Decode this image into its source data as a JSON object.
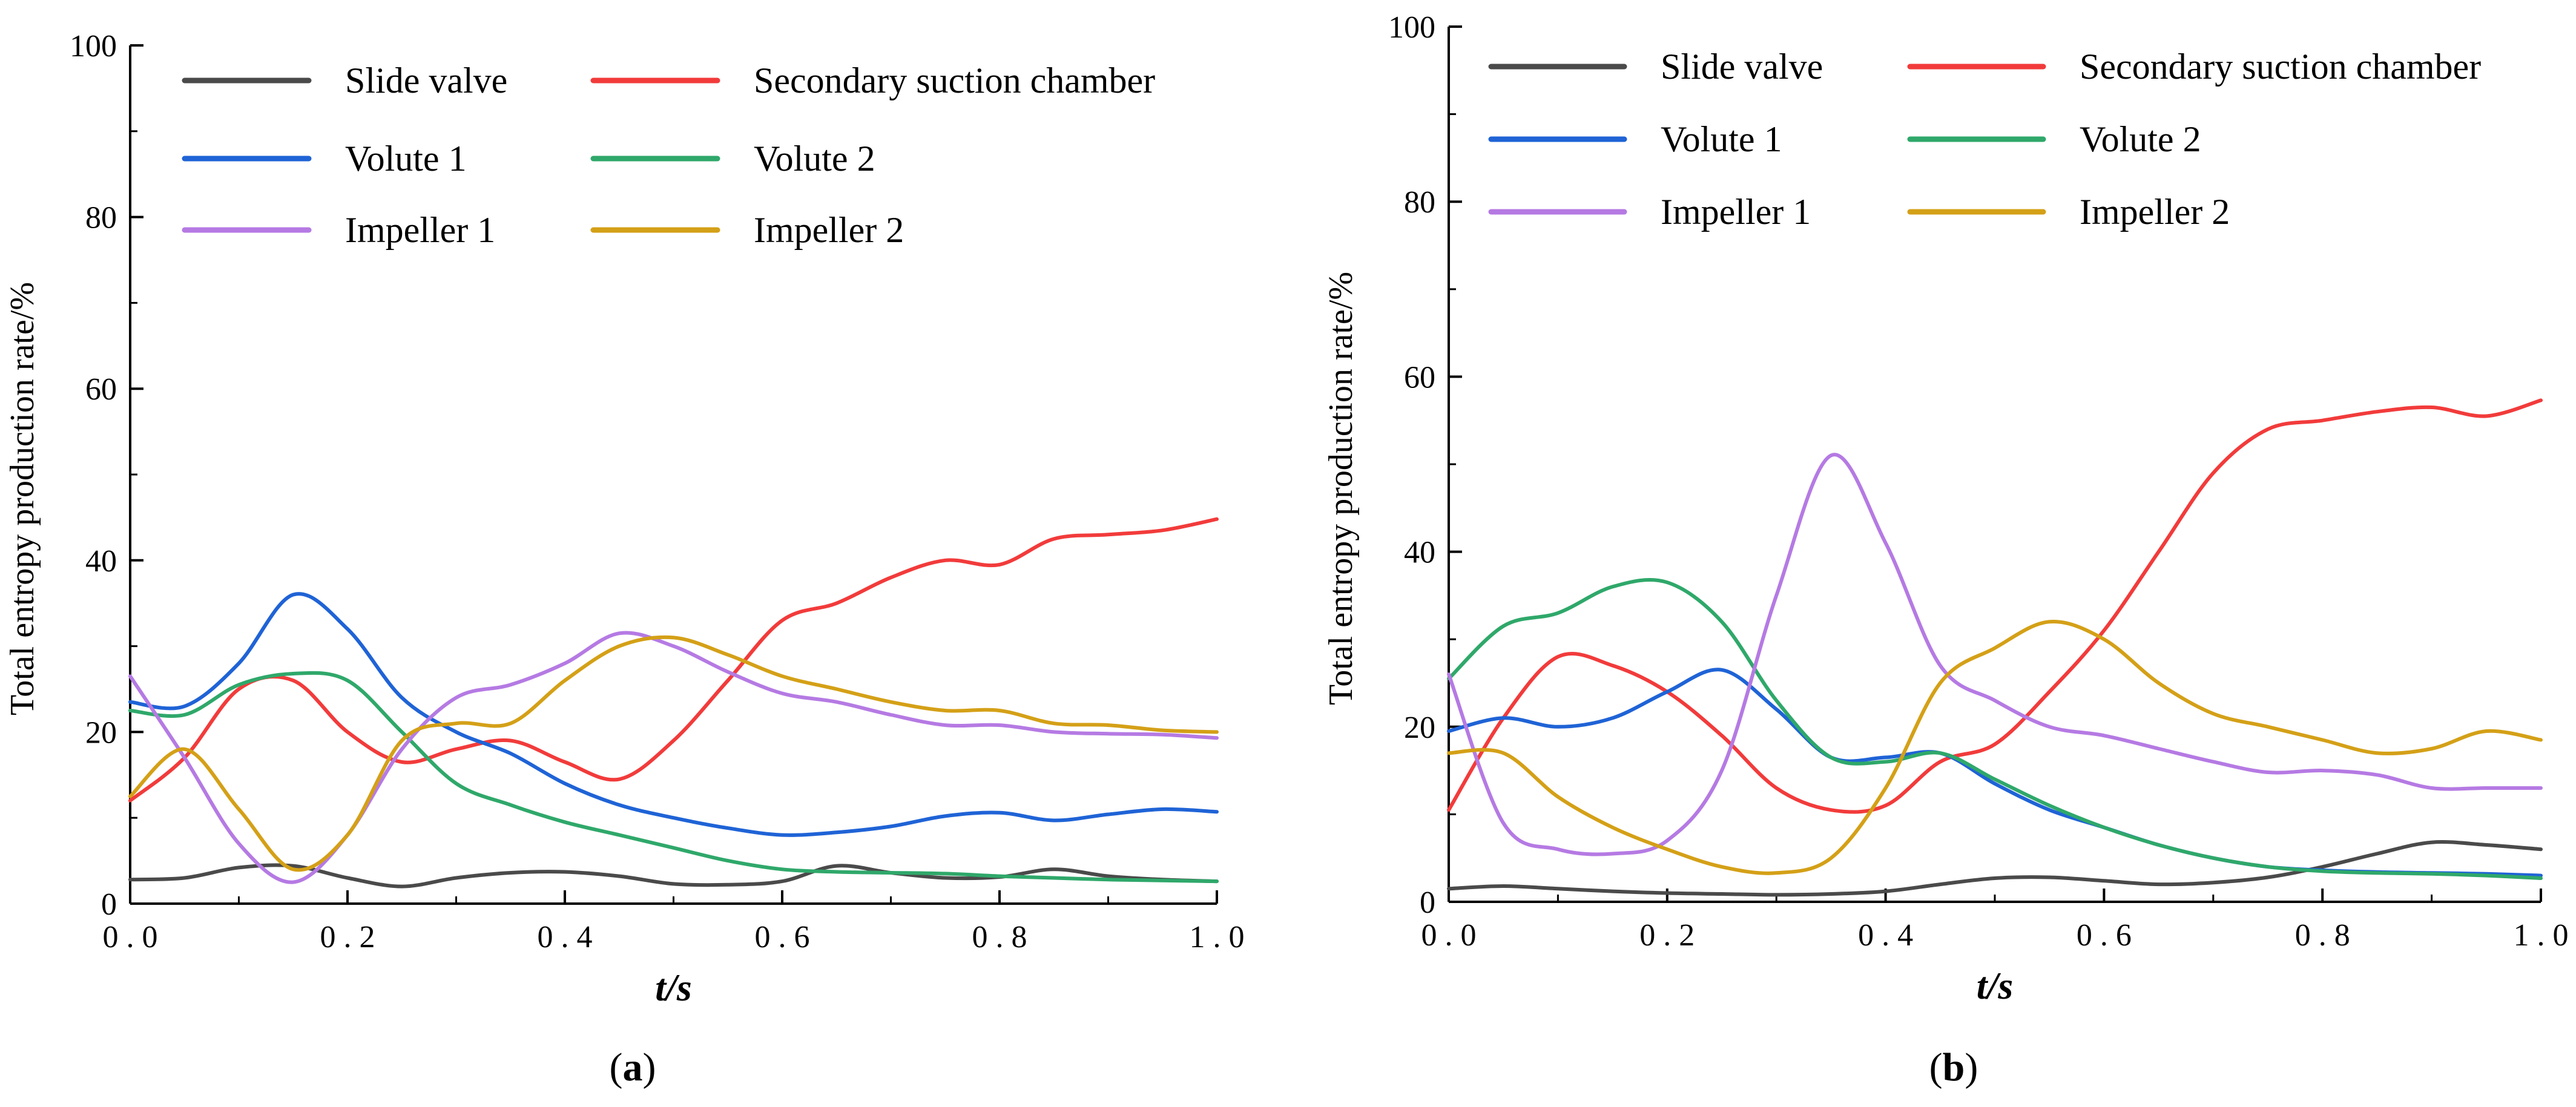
{
  "chart_data": [
    {
      "type": "line",
      "panel_label": "a",
      "xlabel": "t/s",
      "ylabel": "Total entropy production rate/%",
      "xlim": [
        0,
        1
      ],
      "ylim": [
        0,
        100
      ],
      "x_ticks": [
        "0.0",
        "0.2",
        "0.4",
        "0.6",
        "0.8",
        "1.0"
      ],
      "y_ticks": [
        "0",
        "20",
        "40",
        "60",
        "80",
        "100"
      ],
      "legend_position": "top",
      "series": [
        {
          "name": "Slide valve",
          "color": "#4a4a4a",
          "x": [
            0,
            0.05,
            0.1,
            0.15,
            0.2,
            0.25,
            0.3,
            0.35,
            0.4,
            0.45,
            0.5,
            0.55,
            0.6,
            0.65,
            0.7,
            0.75,
            0.8,
            0.85,
            0.9,
            0.95,
            1.0
          ],
          "y": [
            2.8,
            3.0,
            4.2,
            4.4,
            3.0,
            2.0,
            3.0,
            3.6,
            3.7,
            3.2,
            2.3,
            2.2,
            2.6,
            4.4,
            3.6,
            3.0,
            3.1,
            4.0,
            3.2,
            2.8,
            2.6
          ]
        },
        {
          "name": "Secondary suction chamber",
          "color": "#f23b3b",
          "x": [
            0,
            0.05,
            0.1,
            0.15,
            0.2,
            0.25,
            0.3,
            0.35,
            0.4,
            0.45,
            0.5,
            0.55,
            0.6,
            0.65,
            0.7,
            0.75,
            0.8,
            0.85,
            0.9,
            0.95,
            1.0
          ],
          "y": [
            12,
            17,
            25,
            26,
            20,
            16.5,
            18,
            19,
            16.5,
            14.5,
            19,
            26,
            33,
            35,
            38,
            40,
            39.5,
            42.5,
            43,
            43.5,
            44.8
          ]
        },
        {
          "name": "Volute 1",
          "color": "#1f63d6",
          "x": [
            0,
            0.05,
            0.1,
            0.15,
            0.2,
            0.25,
            0.3,
            0.35,
            0.4,
            0.45,
            0.5,
            0.55,
            0.6,
            0.65,
            0.7,
            0.75,
            0.8,
            0.85,
            0.9,
            0.95,
            1.0
          ],
          "y": [
            23.5,
            23,
            28,
            36,
            32,
            24,
            20,
            17.5,
            14,
            11.5,
            10,
            8.8,
            8.0,
            8.3,
            9.0,
            10.2,
            10.6,
            9.7,
            10.4,
            11.0,
            10.7
          ]
        },
        {
          "name": "Volute 2",
          "color": "#2fa86a",
          "x": [
            0,
            0.05,
            0.1,
            0.15,
            0.2,
            0.25,
            0.3,
            0.35,
            0.4,
            0.45,
            0.5,
            0.55,
            0.6,
            0.65,
            0.7,
            0.75,
            0.8,
            0.85,
            0.9,
            0.95,
            1.0
          ],
          "y": [
            22.5,
            22,
            25.5,
            26.8,
            26,
            20,
            14,
            11.5,
            9.5,
            8,
            6.5,
            5,
            4,
            3.7,
            3.6,
            3.5,
            3.2,
            3.0,
            2.8,
            2.7,
            2.6
          ]
        },
        {
          "name": "Impeller 1",
          "color": "#b57ae3",
          "x": [
            0,
            0.05,
            0.1,
            0.15,
            0.2,
            0.25,
            0.3,
            0.35,
            0.4,
            0.45,
            0.5,
            0.55,
            0.6,
            0.65,
            0.7,
            0.75,
            0.8,
            0.85,
            0.9,
            0.95,
            1.0
          ],
          "y": [
            26.5,
            17,
            7,
            2.5,
            8,
            18,
            24,
            25.5,
            28,
            31.5,
            30,
            27,
            24.5,
            23.5,
            22,
            20.8,
            20.8,
            20,
            19.8,
            19.7,
            19.3
          ]
        },
        {
          "name": "Impeller 2",
          "color": "#d4a017",
          "x": [
            0,
            0.05,
            0.1,
            0.15,
            0.2,
            0.25,
            0.3,
            0.35,
            0.4,
            0.45,
            0.5,
            0.55,
            0.6,
            0.65,
            0.7,
            0.75,
            0.8,
            0.85,
            0.9,
            0.95,
            1.0
          ],
          "y": [
            12.5,
            18,
            11,
            4,
            8,
            19,
            21,
            21,
            26,
            30,
            31,
            29,
            26.5,
            25,
            23.5,
            22.5,
            22.5,
            21,
            20.8,
            20.2,
            20
          ]
        }
      ]
    },
    {
      "type": "line",
      "panel_label": "b",
      "xlabel": "t/s",
      "ylabel": "Total entropy production rate/%",
      "xlim": [
        0,
        1
      ],
      "ylim": [
        0,
        100
      ],
      "x_ticks": [
        "0.0",
        "0.2",
        "0.4",
        "0.6",
        "0.8",
        "1.0"
      ],
      "y_ticks": [
        "0",
        "20",
        "40",
        "60",
        "80",
        "100"
      ],
      "legend_position": "top",
      "series": [
        {
          "name": "Slide valve",
          "color": "#4a4a4a",
          "x": [
            0,
            0.05,
            0.1,
            0.15,
            0.2,
            0.25,
            0.3,
            0.35,
            0.4,
            0.45,
            0.5,
            0.55,
            0.6,
            0.65,
            0.7,
            0.75,
            0.8,
            0.85,
            0.9,
            0.95,
            1.0
          ],
          "y": [
            1.5,
            1.8,
            1.5,
            1.2,
            1.0,
            0.9,
            0.8,
            0.9,
            1.2,
            2.0,
            2.7,
            2.8,
            2.4,
            2.0,
            2.2,
            2.8,
            4.0,
            5.5,
            6.8,
            6.5,
            6.0
          ]
        },
        {
          "name": "Secondary suction chamber",
          "color": "#f23b3b",
          "x": [
            0,
            0.05,
            0.1,
            0.15,
            0.2,
            0.25,
            0.3,
            0.35,
            0.4,
            0.45,
            0.5,
            0.55,
            0.6,
            0.65,
            0.7,
            0.75,
            0.8,
            0.85,
            0.9,
            0.95,
            1.0
          ],
          "y": [
            10.5,
            21,
            28,
            27,
            24,
            19,
            13,
            10.5,
            11,
            16,
            18,
            24,
            31,
            40,
            49,
            54,
            55,
            56,
            56.5,
            55.5,
            57.3
          ]
        },
        {
          "name": "Volute 1",
          "color": "#1f63d6",
          "x": [
            0,
            0.05,
            0.1,
            0.15,
            0.2,
            0.25,
            0.3,
            0.35,
            0.4,
            0.45,
            0.5,
            0.55,
            0.6,
            0.65,
            0.7,
            0.75,
            0.8,
            0.85,
            0.9,
            0.95,
            1.0
          ],
          "y": [
            19.5,
            21,
            20,
            21,
            24,
            26.5,
            22,
            16.5,
            16.5,
            17,
            13.5,
            10.5,
            8.5,
            6.5,
            5,
            4,
            3.6,
            3.4,
            3.3,
            3.2,
            3.0
          ]
        },
        {
          "name": "Volute 2",
          "color": "#2fa86a",
          "x": [
            0,
            0.05,
            0.1,
            0.15,
            0.2,
            0.25,
            0.3,
            0.35,
            0.4,
            0.45,
            0.5,
            0.55,
            0.6,
            0.65,
            0.7,
            0.75,
            0.8,
            0.85,
            0.9,
            0.95,
            1.0
          ],
          "y": [
            25.5,
            31.5,
            33,
            36,
            36.5,
            32,
            23,
            16.5,
            16,
            17,
            14,
            11,
            8.5,
            6.5,
            5,
            4,
            3.5,
            3.3,
            3.2,
            3.0,
            2.7
          ]
        },
        {
          "name": "Impeller 1",
          "color": "#b57ae3",
          "x": [
            0,
            0.05,
            0.1,
            0.15,
            0.2,
            0.25,
            0.3,
            0.35,
            0.4,
            0.45,
            0.5,
            0.55,
            0.6,
            0.65,
            0.7,
            0.75,
            0.8,
            0.85,
            0.9,
            0.95,
            1.0
          ],
          "y": [
            26,
            9,
            6,
            5.5,
            7,
            15,
            35,
            51,
            41,
            27,
            23,
            20,
            19,
            17.5,
            16,
            14.8,
            15,
            14.5,
            13,
            13,
            13
          ]
        },
        {
          "name": "Impeller 2",
          "color": "#d4a017",
          "x": [
            0,
            0.05,
            0.1,
            0.15,
            0.2,
            0.25,
            0.3,
            0.35,
            0.4,
            0.45,
            0.5,
            0.55,
            0.6,
            0.65,
            0.7,
            0.75,
            0.8,
            0.85,
            0.9,
            0.95,
            1.0
          ],
          "y": [
            17,
            17,
            12,
            8.5,
            6,
            4,
            3.3,
            5,
            13,
            25,
            29,
            32,
            30,
            25,
            21.5,
            20,
            18.5,
            17,
            17.5,
            19.5,
            18.5
          ]
        }
      ]
    }
  ]
}
